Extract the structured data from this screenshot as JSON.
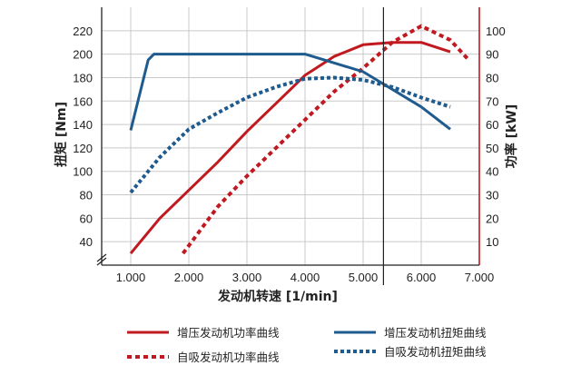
{
  "chart_data": {
    "type": "line",
    "xlabel": "发动机转速 [1/min]",
    "ylabel_left": "扭矩 [Nm]",
    "ylabel_right": "功率 [kW]",
    "xlim": [
      500,
      7000
    ],
    "ylim_left": [
      20,
      240
    ],
    "ylim_right": [
      0,
      110
    ],
    "x_ticks": [
      1000,
      2000,
      3000,
      4000,
      5000,
      6000,
      7000
    ],
    "x_tick_labels": [
      "1.000",
      "2.000",
      "3.000",
      "4.000",
      "5.000",
      "6.000",
      "7.000"
    ],
    "y_left_ticks": [
      40,
      60,
      80,
      100,
      120,
      140,
      160,
      180,
      200,
      220
    ],
    "y_right_ticks": [
      10,
      20,
      30,
      40,
      50,
      60,
      70,
      80,
      90,
      100
    ],
    "reference_line_x": 5350,
    "grid": true,
    "legend_position": "bottom",
    "series": [
      {
        "name": "增压发动机功率曲线",
        "axis": "right",
        "color": "#c0191f",
        "style": "solid",
        "x": [
          1000,
          1500,
          2000,
          2500,
          3000,
          3500,
          4000,
          4500,
          5000,
          5500,
          6000,
          6500
        ],
        "y": [
          5,
          20,
          32,
          44,
          57,
          69,
          81,
          89,
          94,
          95,
          95,
          91
        ]
      },
      {
        "name": "自吸发动机功率曲线",
        "axis": "right",
        "color": "#c0191f",
        "style": "dotted",
        "x": [
          1900,
          2500,
          3000,
          3500,
          4000,
          4500,
          5000,
          5500,
          6000,
          6500,
          6800
        ],
        "y": [
          5,
          25,
          38,
          50,
          62,
          74,
          84,
          95,
          102,
          96,
          88
        ]
      },
      {
        "name": "增压发动机扭矩曲线",
        "axis": "left",
        "color": "#1f5b8e",
        "style": "solid",
        "x": [
          1000,
          1300,
          1400,
          4000,
          5000,
          6000,
          6500
        ],
        "y": [
          135,
          195,
          200,
          200,
          185,
          155,
          136
        ]
      },
      {
        "name": "自吸发动机扭矩曲线",
        "axis": "left",
        "color": "#1f5b8e",
        "style": "dotted",
        "x": [
          1000,
          1500,
          2000,
          2500,
          3000,
          3500,
          4000,
          4500,
          5000,
          5500,
          6000,
          6500
        ],
        "y": [
          82,
          112,
          136,
          150,
          163,
          172,
          179,
          180,
          178,
          172,
          163,
          155
        ]
      }
    ]
  }
}
